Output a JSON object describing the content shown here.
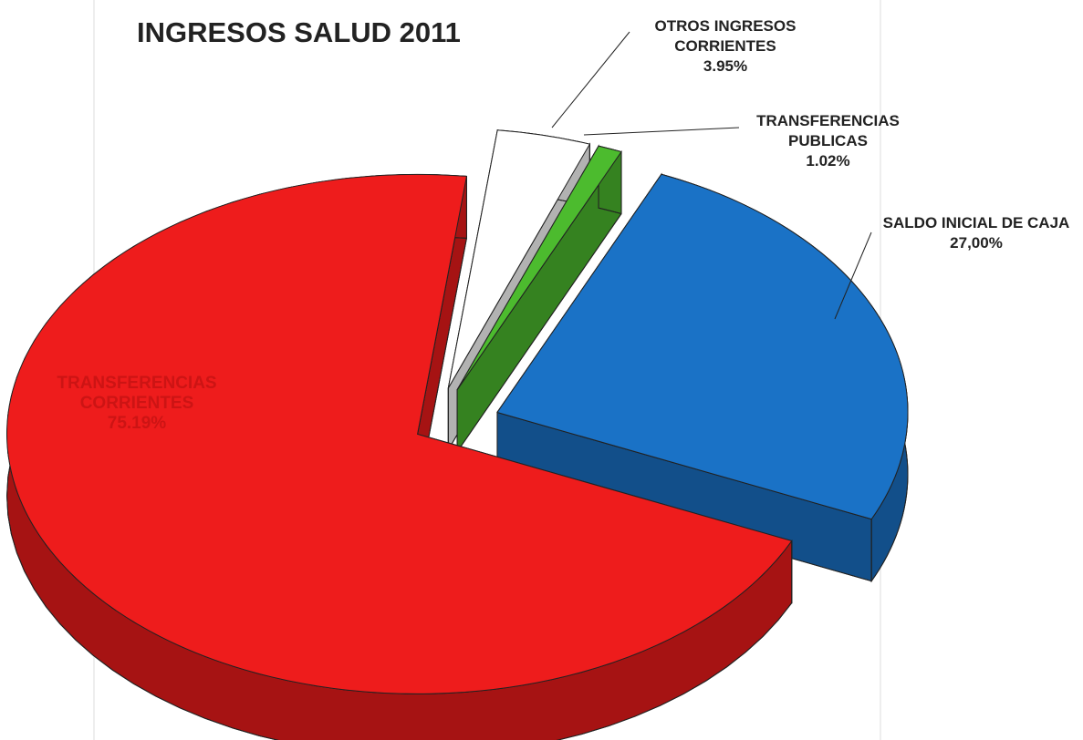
{
  "chart_data": {
    "type": "pie",
    "title": "INGRESOS SALUD 2011",
    "categories": [
      "OTROS INGRESOS CORRIENTES",
      "TRANSFERENCIAS PUBLICAS",
      "SALDO INICIAL DE CAJA",
      "TRANSFERENCIAS CORRIENTES"
    ],
    "values": [
      3.95,
      1.02,
      27.0,
      75.19
    ],
    "value_labels": [
      "3.95%",
      "1.02%",
      "27,00%",
      "75.19%"
    ],
    "colors": [
      "#ffffff",
      "#4cbb2e",
      "#1a72c6",
      "#ee1c1c"
    ]
  }
}
